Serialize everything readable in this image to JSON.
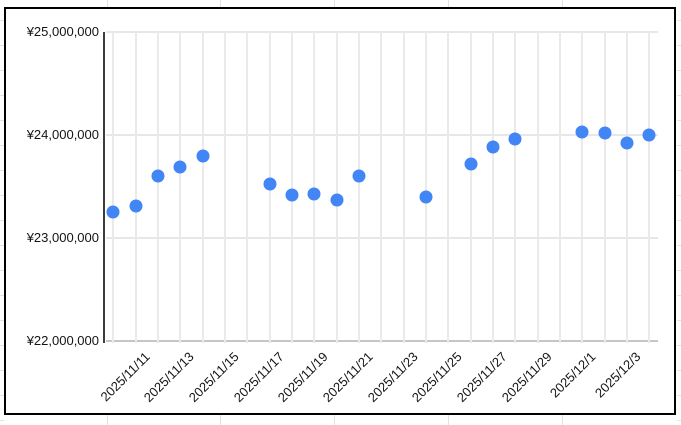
{
  "chart_data": {
    "type": "scatter",
    "title": "",
    "xlabel": "",
    "ylabel": "",
    "legend": "none",
    "grid": true,
    "point_color": "#4285f4",
    "ylim": [
      22000000,
      25000000
    ],
    "y_tick_step": 1000000,
    "y_tick_labels": [
      "¥25,000,000",
      "¥24,000,000",
      "¥23,000,000",
      "¥22,000,000"
    ],
    "x_grid_days": [
      "2025/11/10",
      "2025/11/11",
      "2025/11/12",
      "2025/11/13",
      "2025/11/14",
      "2025/11/15",
      "2025/11/16",
      "2025/11/17",
      "2025/11/18",
      "2025/11/19",
      "2025/11/20",
      "2025/11/21",
      "2025/11/22",
      "2025/11/23",
      "2025/11/24",
      "2025/11/25",
      "2025/11/26",
      "2025/11/27",
      "2025/11/28",
      "2025/11/29",
      "2025/11/30",
      "2025/12/1",
      "2025/12/2",
      "2025/12/3",
      "2025/12/4"
    ],
    "x_tick_labels": [
      "2025/11/11",
      "2025/11/13",
      "2025/11/15",
      "2025/11/17",
      "2025/11/19",
      "2025/11/21",
      "2025/11/23",
      "2025/11/25",
      "2025/11/27",
      "2025/11/29",
      "2025/12/1",
      "2025/12/3"
    ],
    "series": [
      {
        "name": "",
        "points": [
          {
            "date": "2025/11/10",
            "value": 23250000
          },
          {
            "date": "2025/11/11",
            "value": 23310000
          },
          {
            "date": "2025/11/12",
            "value": 23600000
          },
          {
            "date": "2025/11/13",
            "value": 23690000
          },
          {
            "date": "2025/11/14",
            "value": 23800000
          },
          {
            "date": "2025/11/17",
            "value": 23520000
          },
          {
            "date": "2025/11/18",
            "value": 23420000
          },
          {
            "date": "2025/11/19",
            "value": 23430000
          },
          {
            "date": "2025/11/20",
            "value": 23370000
          },
          {
            "date": "2025/11/21",
            "value": 23600000
          },
          {
            "date": "2025/11/24",
            "value": 23400000
          },
          {
            "date": "2025/11/26",
            "value": 23720000
          },
          {
            "date": "2025/11/27",
            "value": 23880000
          },
          {
            "date": "2025/11/28",
            "value": 23960000
          },
          {
            "date": "2025/12/1",
            "value": 24030000
          },
          {
            "date": "2025/12/2",
            "value": 24020000
          },
          {
            "date": "2025/12/3",
            "value": 23920000
          },
          {
            "date": "2025/12/4",
            "value": 24000000
          }
        ]
      }
    ]
  }
}
